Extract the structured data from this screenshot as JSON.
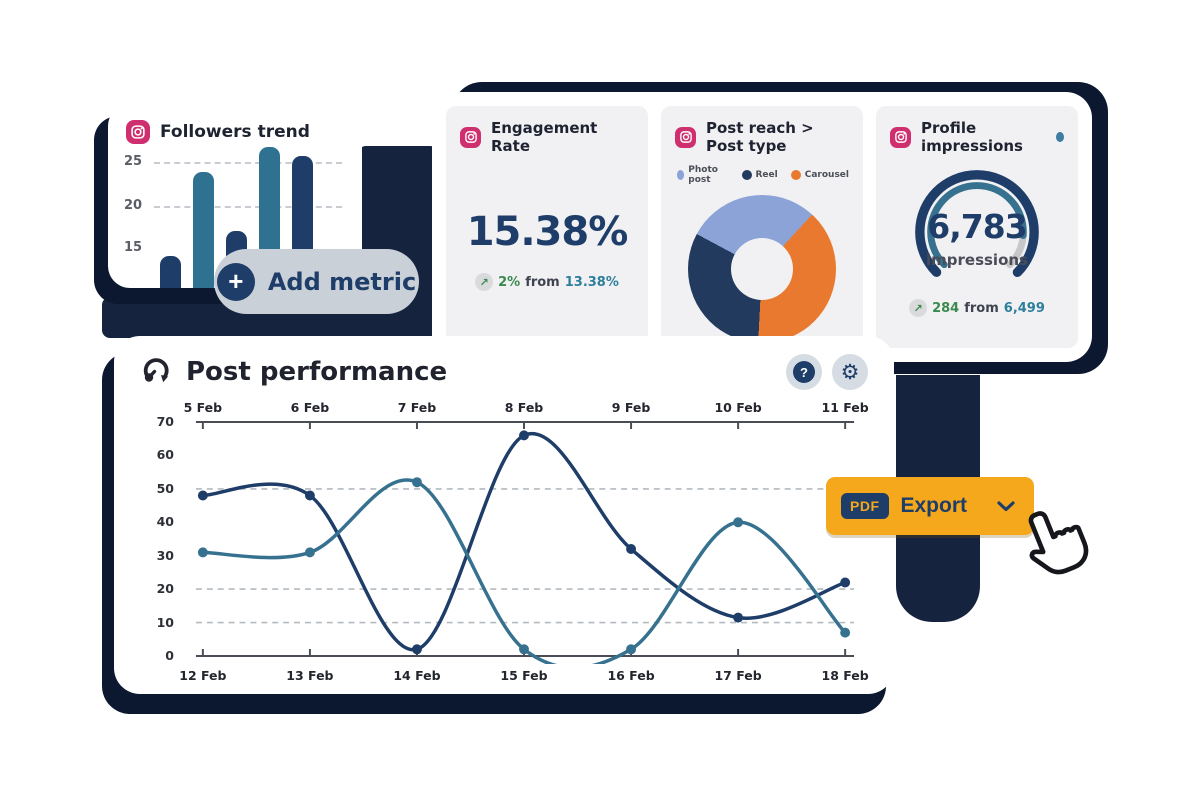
{
  "colors": {
    "navy": "#1e3d68",
    "deep_navy_shadow": "#0b1830",
    "band_navy": "#16233f",
    "teal": "#36718f",
    "light_blue": "#8ca3d8",
    "orange_slice": "#e9792e",
    "button_orange": "#f5a81b",
    "green": "#3a8a4d",
    "teal_text": "#2d7f9b",
    "subcard_gray": "#f1f1f3",
    "pill_gray": "#c9d0d8",
    "instagram_pink": "#cf2f6e"
  },
  "cards": {
    "engagement": {
      "title": "Engagement Rate",
      "value": "15.38%",
      "change": {
        "arrow": "↗",
        "delta": "2%",
        "from_word": "from",
        "previous": "13.38%"
      }
    },
    "impressions": {
      "change": {
        "arrow": "↗",
        "delta": "284",
        "from_word": "from",
        "previous": "6,499"
      }
    },
    "performance": {
      "help_label": "?",
      "gear_glyph": "⚙"
    }
  },
  "buttons": {
    "add_metric": {
      "label": "Add metric",
      "plus": "+"
    },
    "export": {
      "badge": "PDF",
      "label": "Export"
    }
  },
  "chart_data": [
    {
      "id": "followers_trend",
      "type": "bar",
      "title": "Followers trend",
      "values": [
        14,
        24,
        17,
        27,
        26
      ],
      "bar_colors": [
        "#1e3d68",
        "#2e7191",
        "#1e3d68",
        "#2e7191",
        "#1e3d68"
      ],
      "yticks": [
        25,
        20,
        15
      ],
      "grid": "dashed at 25 and 20",
      "ylim": [
        10,
        28
      ]
    },
    {
      "id": "post_reach_by_type",
      "type": "pie",
      "donut": true,
      "title": "Post reach > Post type",
      "legend_position": "top",
      "slices": [
        {
          "label": "Photo post",
          "color": "#8ca3d8",
          "percent": 29
        },
        {
          "label": "Reel",
          "color": "#213a5e",
          "percent": 32
        },
        {
          "label": "Carousel",
          "color": "#e9792e",
          "percent": 39
        }
      ],
      "draw_order": [
        1,
        0,
        2
      ],
      "start_deg": 183
    },
    {
      "id": "profile_impressions_gauge",
      "type": "gauge",
      "title": "Profile impressions",
      "value": "6,783",
      "unit": "impressions",
      "fraction": 0.85,
      "arc_sweep_deg": 270,
      "arc_colors": {
        "outer": "#1e3d68",
        "inner": "#36718f",
        "remainder": "#c7c7c7"
      }
    },
    {
      "id": "post_performance",
      "type": "line",
      "title": "Post performance",
      "x_top_labels": [
        "5 Feb",
        "6 Feb",
        "7 Feb",
        "8 Feb",
        "9 Feb",
        "10 Feb",
        "11 Feb"
      ],
      "x_bottom_labels": [
        "12 Feb",
        "13 Feb",
        "14 Feb",
        "15 Feb",
        "16 Feb",
        "17 Feb",
        "18 Feb"
      ],
      "yticks": [
        70,
        60,
        50,
        40,
        30,
        20,
        10,
        0
      ],
      "ylim": [
        0,
        70
      ],
      "dashed_gridlines_at": [
        50,
        20,
        10
      ],
      "grid": "dashed horizontal",
      "series": [
        {
          "name": "series-navy",
          "color": "#1e3d68",
          "values": [
            48,
            48,
            2,
            66,
            32,
            11.5,
            22
          ]
        },
        {
          "name": "series-teal",
          "color": "#36718f",
          "values": [
            31,
            31,
            52,
            2,
            2,
            40,
            7
          ]
        }
      ]
    }
  ]
}
